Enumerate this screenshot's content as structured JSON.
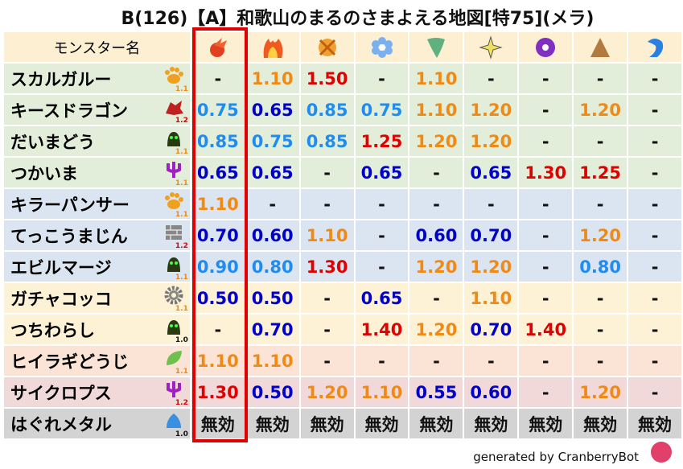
{
  "title": "B(126)【A】和歌山のまるのさまよえる地図[特75](メラ)",
  "header": {
    "name_label": "モンスター名",
    "elements": [
      "mera-icon",
      "gira-icon",
      "io-icon",
      "hyado-icon",
      "bagi-icon",
      "dein-icon",
      "dorma-icon",
      "jibaria-icon",
      "water-icon"
    ],
    "highlighted_column": 0
  },
  "colors": {
    "strong_resist": "#0000c8",
    "resist": "#1e8cf0",
    "weak": "#f08a14",
    "very_weak": "#e00000",
    "highlight": "#e00000"
  },
  "rows": [
    {
      "name": "スカルガルー",
      "icon": "paw-icon",
      "mult": "1.1",
      "bg": "g",
      "values": [
        "-",
        "1.10",
        "1.50",
        "-",
        "1.10",
        "-",
        "-",
        "-",
        "-"
      ]
    },
    {
      "name": "キースドラゴン",
      "icon": "dragon-icon",
      "mult": "1.2",
      "bg": "g",
      "values": [
        "0.75",
        "0.65",
        "0.85",
        "0.75",
        "1.10",
        "1.20",
        "-",
        "1.20",
        "-"
      ]
    },
    {
      "name": "だいまどう",
      "icon": "slime-shadow-icon",
      "mult": "1.1",
      "bg": "g",
      "values": [
        "0.85",
        "0.75",
        "0.85",
        "1.25",
        "1.20",
        "1.20",
        "-",
        "-",
        "-"
      ]
    },
    {
      "name": "つかいま",
      "icon": "devil-trident-icon",
      "mult": "1.1",
      "bg": "g",
      "values": [
        "0.65",
        "0.65",
        "-",
        "0.65",
        "-",
        "0.65",
        "1.30",
        "1.25",
        "-"
      ]
    },
    {
      "name": "キラーパンサー",
      "icon": "paw-icon",
      "mult": "1.1",
      "bg": "b",
      "values": [
        "1.10",
        "-",
        "-",
        "-",
        "-",
        "-",
        "-",
        "-",
        "-"
      ]
    },
    {
      "name": "てっこうまじん",
      "icon": "brick-icon",
      "mult": "1.2",
      "bg": "b",
      "values": [
        "0.70",
        "0.60",
        "1.10",
        "-",
        "0.60",
        "0.70",
        "-",
        "1.20",
        "-"
      ]
    },
    {
      "name": "エビルマージ",
      "icon": "slime-shadow-icon",
      "mult": "1.1",
      "bg": "b",
      "values": [
        "0.90",
        "0.80",
        "1.30",
        "-",
        "1.20",
        "1.20",
        "-",
        "0.80",
        "-"
      ]
    },
    {
      "name": "ガチャコッコ",
      "icon": "gear-icon",
      "mult": "1.1",
      "bg": "y",
      "values": [
        "0.50",
        "0.50",
        "-",
        "0.65",
        "-",
        "1.10",
        "-",
        "-",
        "-"
      ]
    },
    {
      "name": "つちわらし",
      "icon": "slime-shadow-icon",
      "mult": "1.0",
      "bg": "y",
      "values": [
        "-",
        "0.70",
        "-",
        "1.40",
        "1.20",
        "0.70",
        "1.40",
        "-",
        "-"
      ]
    },
    {
      "name": "ヒイラギどうじ",
      "icon": "leaf-icon",
      "mult": "1.1",
      "bg": "p",
      "values": [
        "1.10",
        "1.10",
        "-",
        "-",
        "-",
        "-",
        "-",
        "-",
        "-"
      ]
    },
    {
      "name": "サイクロプス",
      "icon": "devil-trident-icon",
      "mult": "1.2",
      "bg": "r",
      "values": [
        "1.30",
        "0.50",
        "1.20",
        "1.10",
        "0.55",
        "0.60",
        "-",
        "1.20",
        "-"
      ]
    },
    {
      "name": "はぐれメタル",
      "icon": "metal-slime-icon",
      "mult": "1.0",
      "bg": "k",
      "values": [
        "無効",
        "無効",
        "無効",
        "無効",
        "無効",
        "無効",
        "無効",
        "無効",
        "無効"
      ]
    }
  ],
  "footer": "generated by CranberryBot"
}
